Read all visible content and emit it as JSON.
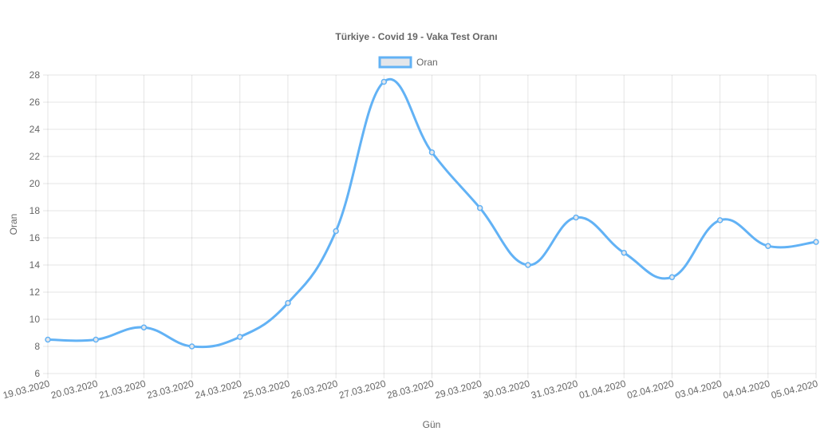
{
  "chart_data": {
    "type": "line",
    "title": "Türkiye - Covid 19 - Vaka Test Oranı",
    "xlabel": "Gün",
    "ylabel": "Oran",
    "ylim": [
      6,
      28
    ],
    "yticks": [
      6,
      8,
      10,
      12,
      14,
      16,
      18,
      20,
      22,
      24,
      26,
      28
    ],
    "grid": true,
    "legend_position": "top",
    "categories": [
      "19.03.2020",
      "20.03.2020",
      "21.03.2020",
      "23.03.2020",
      "24.03.2020",
      "25.03.2020",
      "26.03.2020",
      "27.03.2020",
      "28.03.2020",
      "29.03.2020",
      "30.03.2020",
      "31.03.2020",
      "01.04.2020",
      "02.04.2020",
      "03.04.2020",
      "04.04.2020",
      "05.04.2020"
    ],
    "series": [
      {
        "name": "Oran",
        "color": "#62b2f5",
        "fill": "#e4e6ea",
        "values": [
          8.5,
          8.5,
          9.4,
          8.0,
          8.7,
          11.2,
          16.5,
          27.5,
          22.3,
          18.2,
          14.0,
          17.5,
          14.9,
          13.1,
          17.3,
          15.4,
          15.7
        ]
      }
    ]
  }
}
